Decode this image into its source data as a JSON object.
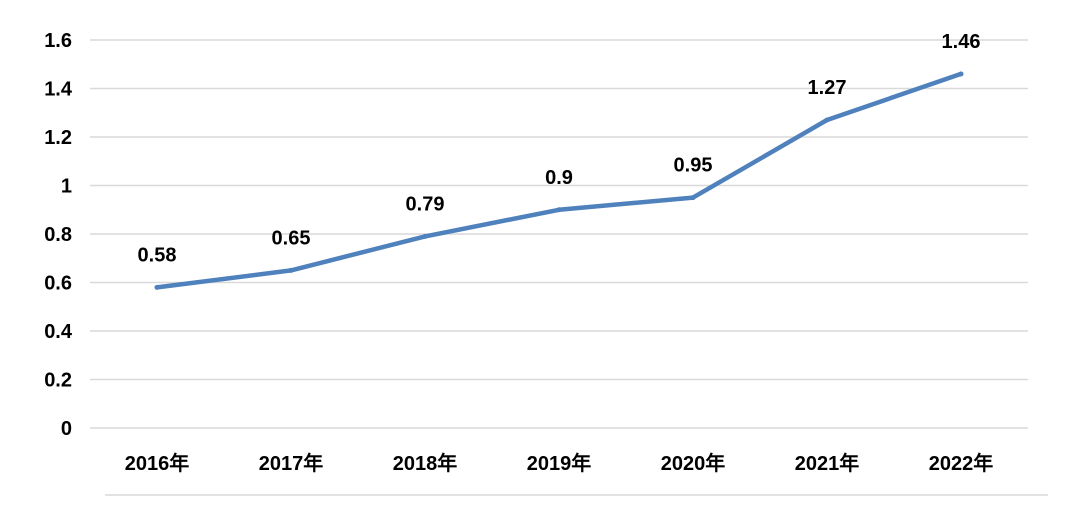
{
  "chart_data": {
    "type": "line",
    "title": "",
    "xlabel": "",
    "ylabel": "",
    "categories": [
      "2016年",
      "2017年",
      "2018年",
      "2019年",
      "2020年",
      "2021年",
      "2022年"
    ],
    "series": [
      {
        "values": [
          0.58,
          0.65,
          0.79,
          0.9,
          0.95,
          1.27,
          1.46
        ],
        "labels": [
          "0.58",
          "0.65",
          "0.79",
          "0.9",
          "0.95",
          "1.27",
          "1.46"
        ],
        "color": "#4f81bd"
      }
    ],
    "ylim": [
      0,
      1.6
    ],
    "yticks": [
      0,
      0.2,
      0.4,
      0.6,
      0.8,
      1,
      1.2,
      1.4,
      1.6
    ],
    "ytick_labels": [
      "0",
      "0.2",
      "0.4",
      "0.6",
      "0.8",
      "1",
      "1.2",
      "1.4",
      "1.6"
    ],
    "grid": true,
    "gridline_color": "#d9d9d9",
    "legend": "none"
  }
}
